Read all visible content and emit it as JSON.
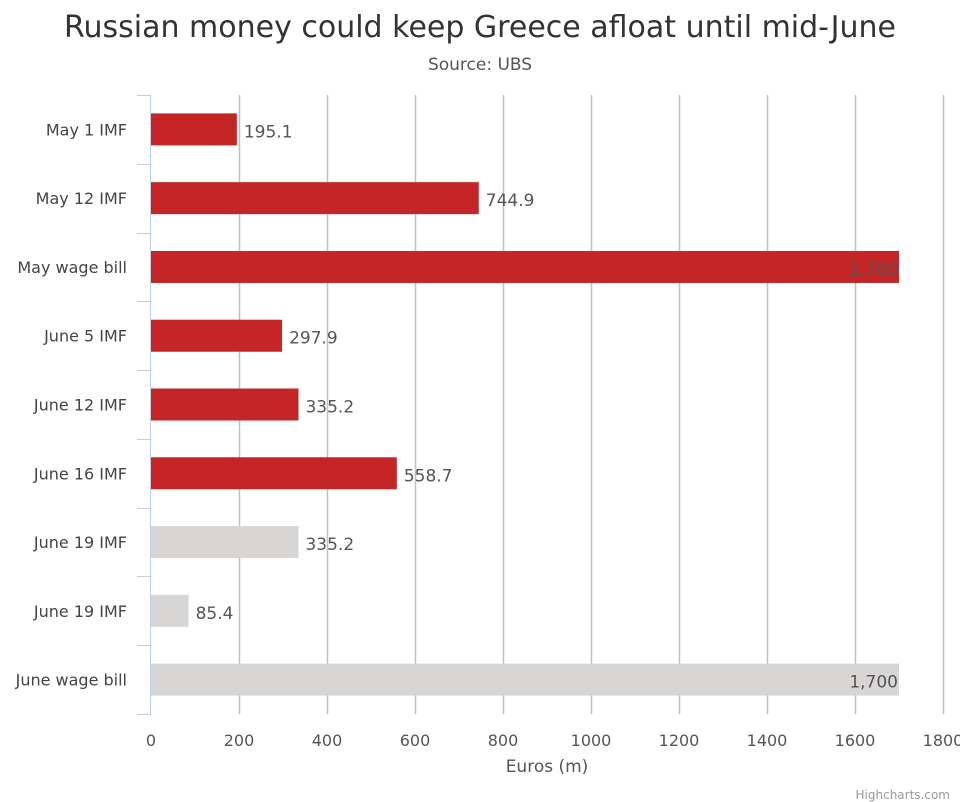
{
  "chart_data": {
    "type": "bar",
    "orientation": "horizontal",
    "title": "Russian money could keep Greece afloat until mid-June",
    "subtitle": "Source: UBS",
    "xlabel": "Euros (m)",
    "ylabel": "",
    "xlim": [
      0,
      1800
    ],
    "x_ticks": [
      0,
      200,
      400,
      600,
      800,
      1000,
      1200,
      1400,
      1600,
      1800
    ],
    "grid": true,
    "categories": [
      "May 1 IMF",
      "May 12 IMF",
      "May wage bill",
      "June 5 IMF",
      "June 12 IMF",
      "June 16 IMF",
      "June 19 IMF",
      "June 19 IMF",
      "June wage bill"
    ],
    "values": [
      195.1,
      744.9,
      1700,
      297.9,
      335.2,
      558.7,
      335.2,
      85.4,
      1700
    ],
    "data_labels": [
      "195.1",
      "744.9",
      "1,700",
      "297.9",
      "335.2",
      "558.7",
      "335.2",
      "85.4",
      "1,700"
    ],
    "bar_colors": [
      "#c42526",
      "#c42526",
      "#c42526",
      "#c42526",
      "#c42526",
      "#c42526",
      "#d8d5d5",
      "#d8d5d5",
      "#d8d5d5"
    ]
  },
  "credits": "Highcharts.com"
}
